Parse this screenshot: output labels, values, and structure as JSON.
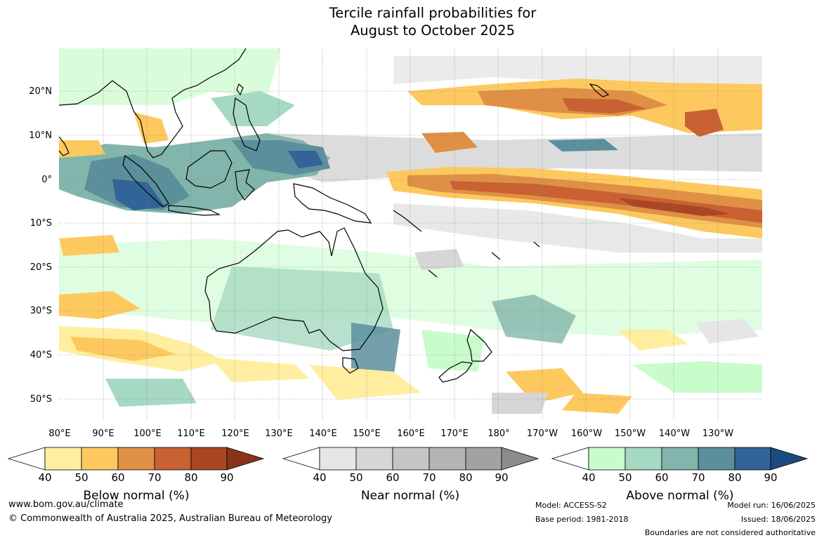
{
  "title": {
    "line1": "Tercile rainfall probabilities for",
    "line2": "August to October 2025"
  },
  "map": {
    "lat_labels": [
      "20°N",
      "10°N",
      "0°",
      "10°S",
      "20°S",
      "30°S",
      "40°S",
      "50°S"
    ],
    "lon_labels": [
      "80°E",
      "90°E",
      "100°E",
      "110°E",
      "120°E",
      "130°E",
      "140°E",
      "150°E",
      "160°E",
      "170°E",
      "180°",
      "170°W",
      "160°W",
      "150°W",
      "140°W",
      "130°W"
    ]
  },
  "legends": [
    {
      "title": "Below normal (%)",
      "ticks": [
        "40",
        "50",
        "60",
        "70",
        "80",
        "90"
      ],
      "colors": [
        "#ffeea0",
        "#fdc95e",
        "#df9045",
        "#c96133",
        "#a94725",
        "#8a3318"
      ]
    },
    {
      "title": "Near normal (%)",
      "ticks": [
        "40",
        "50",
        "60",
        "70",
        "80",
        "90"
      ],
      "colors": [
        "#e6e6e6",
        "#d6d6d6",
        "#c5c5c5",
        "#b4b4b4",
        "#a2a2a2",
        "#8c8c8c"
      ]
    },
    {
      "title": "Above normal (%)",
      "ticks": [
        "40",
        "50",
        "60",
        "70",
        "80",
        "90"
      ],
      "colors": [
        "#c9fccb",
        "#a6d9c1",
        "#82b5ab",
        "#5b8f9c",
        "#326497",
        "#1d4a7d"
      ]
    }
  ],
  "footer": {
    "website": "www.bom.gov.au/climate",
    "copyright": "© Commonwealth of Australia 2025, Australian Bureau of Meteorology",
    "model": "Model: ACCESS-S2",
    "base_period": "Base period: 1981-2018",
    "model_run": "Model run: 16/06/2025",
    "issued": "Issued: 18/06/2025",
    "disclaimer": "Boundaries are not considered authoritative"
  }
}
